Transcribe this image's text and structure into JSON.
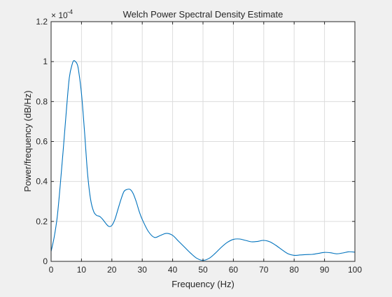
{
  "chart_data": {
    "type": "line",
    "title": "Welch Power Spectral Density Estimate",
    "xlabel": "Frequency (Hz)",
    "ylabel": "Power/frequency (dB/Hz)",
    "exponent_base": "× 10",
    "exponent_power": "-4",
    "xlim": [
      0,
      100
    ],
    "ylim": [
      0,
      1.2
    ],
    "grid": true,
    "line_color": "#0072bd",
    "x_ticks": [
      {
        "value": 0,
        "label": "0"
      },
      {
        "value": 10,
        "label": "10"
      },
      {
        "value": 20,
        "label": "20"
      },
      {
        "value": 30,
        "label": "30"
      },
      {
        "value": 40,
        "label": "40"
      },
      {
        "value": 50,
        "label": "50"
      },
      {
        "value": 60,
        "label": "60"
      },
      {
        "value": 70,
        "label": "70"
      },
      {
        "value": 80,
        "label": "80"
      },
      {
        "value": 90,
        "label": "90"
      },
      {
        "value": 100,
        "label": "100"
      }
    ],
    "y_ticks": [
      {
        "value": 0,
        "label": "0"
      },
      {
        "value": 0.2,
        "label": "0.2"
      },
      {
        "value": 0.4,
        "label": "0.4"
      },
      {
        "value": 0.6,
        "label": "0.6"
      },
      {
        "value": 0.8,
        "label": "0.8"
      },
      {
        "value": 1.0,
        "label": "1"
      },
      {
        "value": 1.2,
        "label": "1.2"
      }
    ],
    "series": [
      {
        "x": [
          0,
          1,
          2,
          3,
          4,
          5,
          6,
          7,
          7.5,
          8,
          8.5,
          9,
          10,
          11,
          12,
          13,
          14,
          15,
          16,
          17,
          18,
          19,
          20,
          21,
          22,
          23,
          24,
          25,
          26,
          27,
          28,
          29,
          30,
          32,
          34,
          36,
          38,
          40,
          42,
          44,
          46,
          48,
          50,
          52,
          54,
          56,
          58,
          60,
          62,
          64,
          66,
          68,
          70,
          72,
          74,
          76,
          78,
          80,
          82,
          84,
          86,
          88,
          90,
          92,
          94,
          96,
          98,
          100
        ],
        "y": [
          0.05,
          0.12,
          0.22,
          0.38,
          0.56,
          0.75,
          0.92,
          0.99,
          1.005,
          1.0,
          0.99,
          0.96,
          0.84,
          0.65,
          0.44,
          0.31,
          0.25,
          0.23,
          0.225,
          0.21,
          0.19,
          0.175,
          0.18,
          0.21,
          0.26,
          0.31,
          0.35,
          0.36,
          0.36,
          0.34,
          0.3,
          0.25,
          0.21,
          0.15,
          0.12,
          0.13,
          0.14,
          0.13,
          0.1,
          0.07,
          0.04,
          0.015,
          0.005,
          0.015,
          0.04,
          0.07,
          0.095,
          0.11,
          0.112,
          0.105,
          0.098,
          0.1,
          0.105,
          0.098,
          0.08,
          0.058,
          0.038,
          0.03,
          0.032,
          0.034,
          0.035,
          0.04,
          0.045,
          0.043,
          0.038,
          0.042,
          0.048,
          0.046
        ]
      }
    ]
  }
}
